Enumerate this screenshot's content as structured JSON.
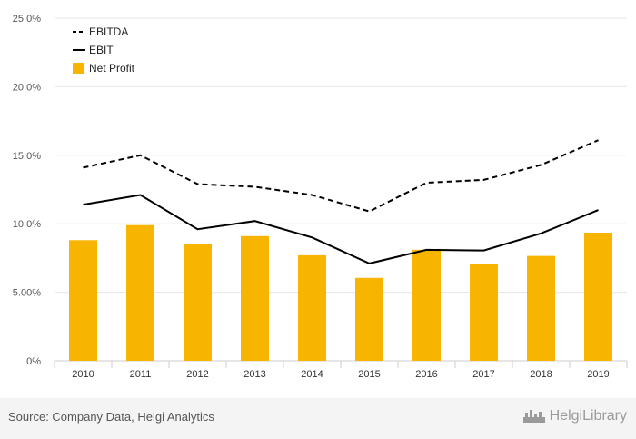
{
  "chart_data": {
    "type": "bar+line",
    "categories": [
      "2010",
      "2011",
      "2012",
      "2013",
      "2014",
      "2015",
      "2016",
      "2017",
      "2018",
      "2019"
    ],
    "series": [
      {
        "name": "EBITDA",
        "type": "line",
        "style": "dashed",
        "color": "#000000",
        "values": [
          14.1,
          15.0,
          12.9,
          12.7,
          12.1,
          10.9,
          13.0,
          13.2,
          14.3,
          16.1
        ]
      },
      {
        "name": "EBIT",
        "type": "line",
        "style": "solid",
        "color": "#000000",
        "values": [
          11.4,
          12.1,
          9.6,
          10.2,
          9.0,
          7.1,
          8.1,
          8.05,
          9.3,
          11.0
        ]
      },
      {
        "name": "Net Profit",
        "type": "bar",
        "color": "#f7b400",
        "values": [
          8.8,
          9.9,
          8.5,
          9.1,
          7.7,
          6.05,
          8.1,
          7.05,
          7.65,
          9.35
        ]
      }
    ],
    "yticks": [
      "0%",
      "5.00%",
      "10.0%",
      "15.0%",
      "20.0%",
      "25.0%"
    ],
    "ytick_values": [
      0,
      5,
      10,
      15,
      20,
      25
    ],
    "ylim": [
      0,
      25
    ],
    "grid": true,
    "legend_position": "top-left"
  },
  "footer": {
    "source": "Source: Company Data, Helgi Analytics",
    "brand": "HelgiLibrary"
  },
  "colors": {
    "bar": "#f7b400",
    "grid": "#e6e6e6",
    "axis": "#cccccc"
  }
}
